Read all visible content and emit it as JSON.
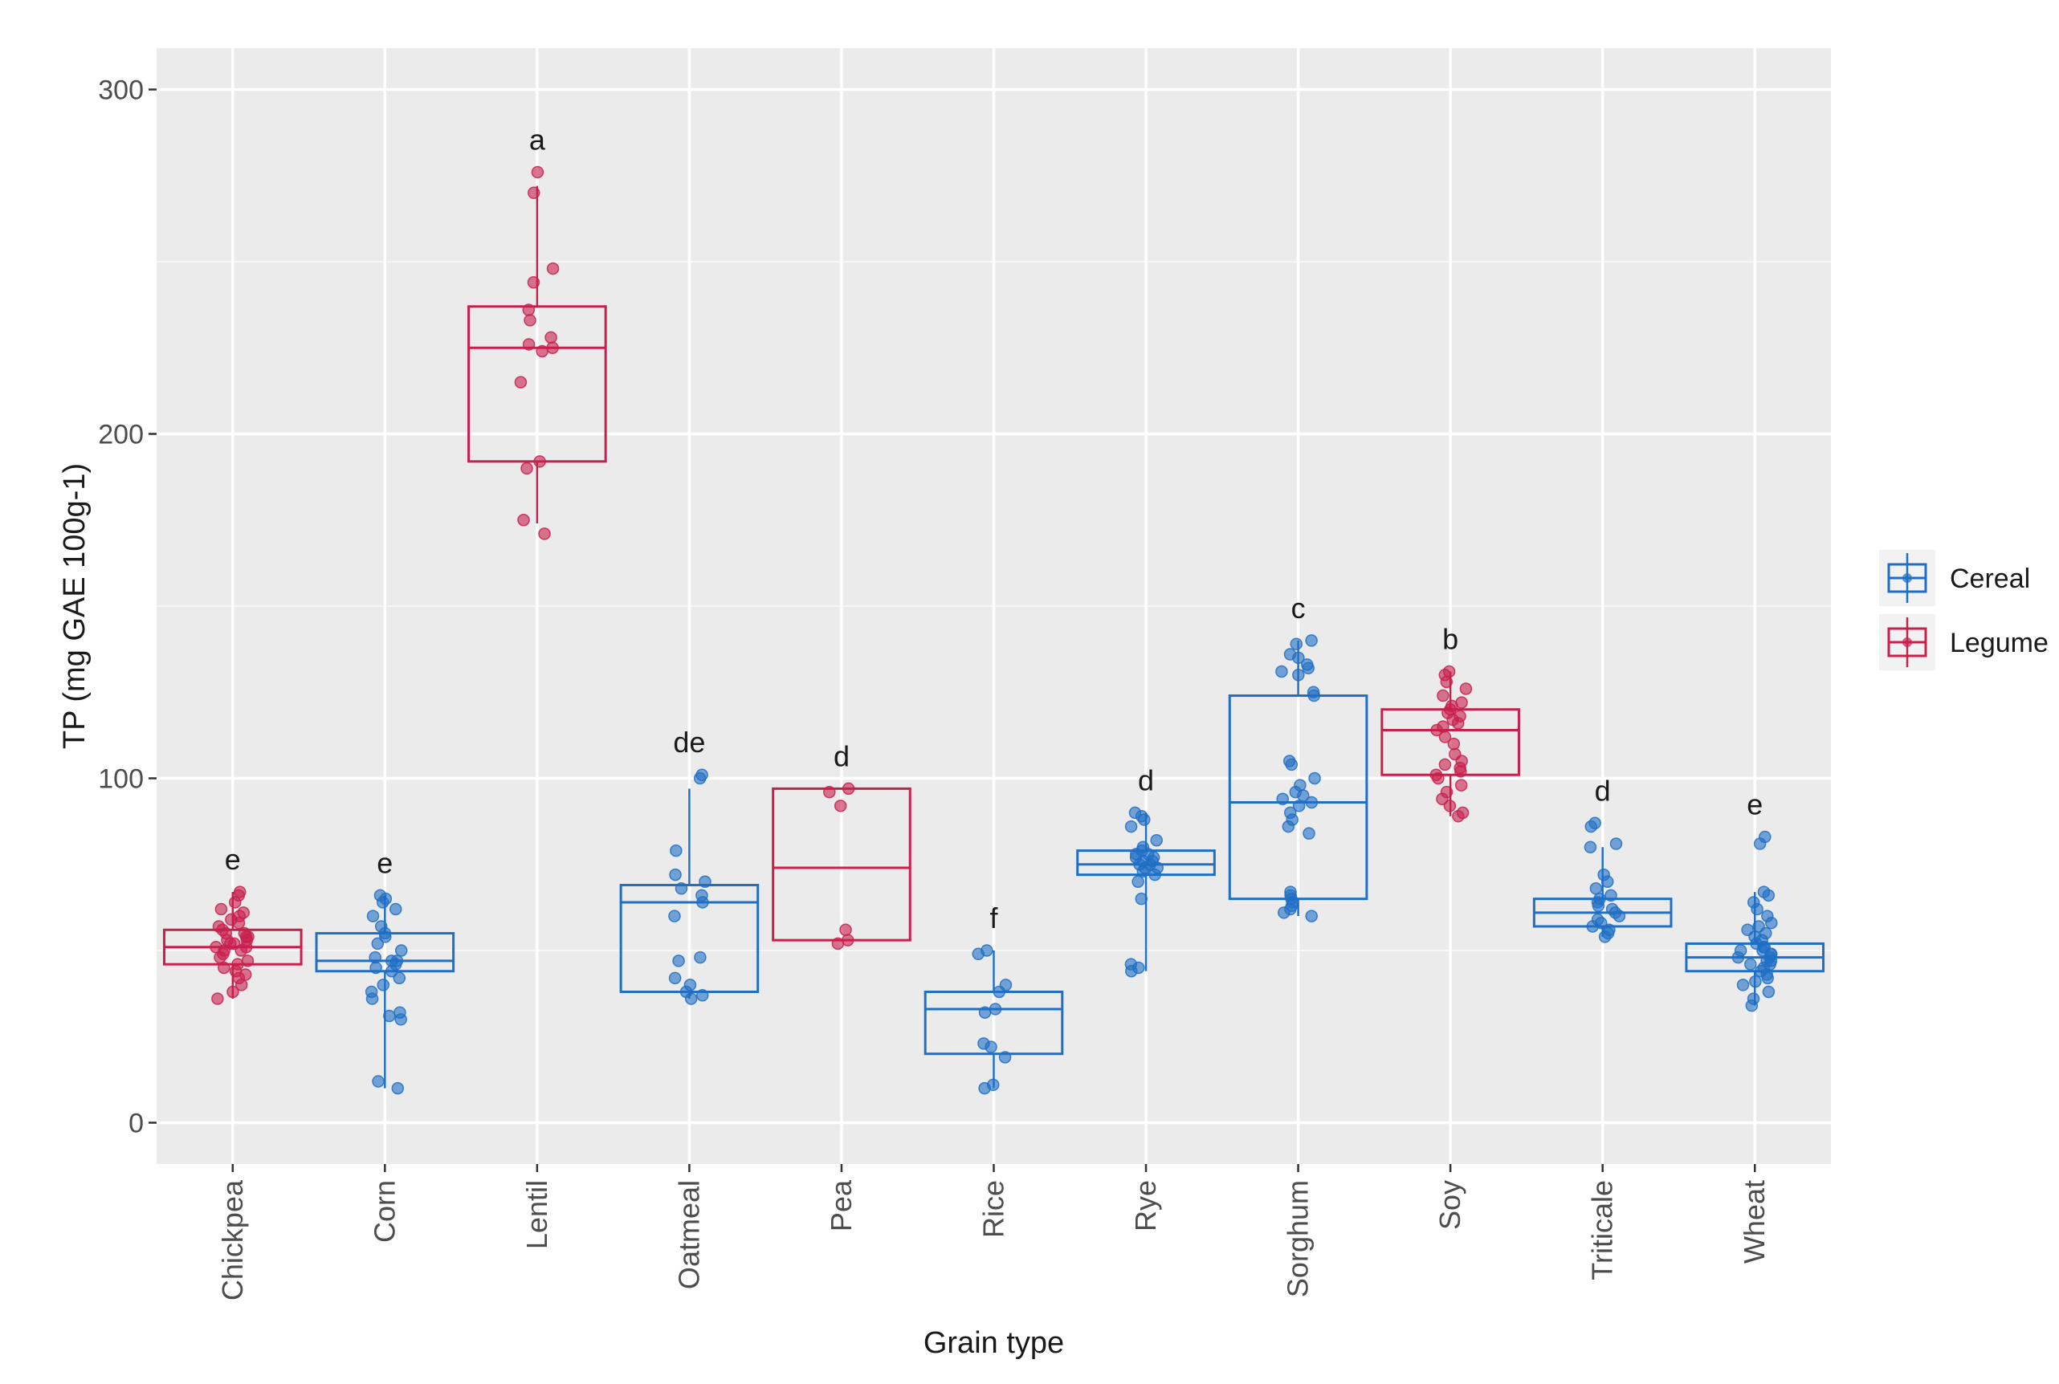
{
  "chart_data": {
    "type": "box",
    "title": "",
    "xlabel": "Grain type",
    "ylabel": "TP (mg GAE 100g-1)",
    "ylim": [
      -12,
      312
    ],
    "yticks": [
      0,
      100,
      200,
      300
    ],
    "grid": true,
    "legend": {
      "position": "right",
      "entries": [
        {
          "label": "Cereal",
          "color": "#1F6FC5"
        },
        {
          "label": "Legume",
          "color": "#C8204D"
        }
      ]
    },
    "categories": [
      "Chickpea",
      "Corn",
      "Lentil",
      "Oatmeal",
      "Pea",
      "Rice",
      "Rye",
      "Sorghum",
      "Soy",
      "Triticale",
      "Wheat"
    ],
    "groups": [
      {
        "category": "Chickpea",
        "group": "Legume",
        "letter": "e",
        "whisker_low": 36,
        "q1": 46,
        "median": 51,
        "q3": 56,
        "whisker_high": 67,
        "points": [
          36,
          38,
          40,
          42,
          43,
          44,
          45,
          46,
          47,
          48,
          49,
          50,
          50,
          51,
          51,
          52,
          52,
          53,
          53,
          54,
          54,
          55,
          55,
          56,
          57,
          58,
          59,
          60,
          61,
          62,
          64,
          66,
          67
        ]
      },
      {
        "category": "Corn",
        "group": "Cereal",
        "letter": "e",
        "whisker_low": 10,
        "q1": 44,
        "median": 47,
        "q3": 55,
        "whisker_high": 66,
        "points": [
          10,
          12,
          30,
          31,
          32,
          36,
          38,
          40,
          42,
          44,
          45,
          46,
          47,
          47,
          48,
          50,
          52,
          54,
          55,
          57,
          60,
          62,
          64,
          65,
          66
        ]
      },
      {
        "category": "Lentil",
        "group": "Legume",
        "letter": "a",
        "whisker_low": 174,
        "q1": 192,
        "median": 225,
        "q3": 237,
        "whisker_high": 272,
        "points": [
          171,
          175,
          190,
          192,
          215,
          224,
          225,
          226,
          228,
          233,
          236,
          244,
          248,
          270,
          276
        ]
      },
      {
        "category": "Oatmeal",
        "group": "Cereal",
        "letter": "de",
        "whisker_low": 36,
        "q1": 38,
        "median": 64,
        "q3": 69,
        "whisker_high": 97,
        "points": [
          36,
          37,
          38,
          40,
          42,
          47,
          48,
          60,
          64,
          66,
          68,
          70,
          72,
          79,
          100,
          101
        ]
      },
      {
        "category": "Pea",
        "group": "Legume",
        "letter": "d",
        "whisker_low": 53,
        "q1": 53,
        "median": 74,
        "q3": 97,
        "whisker_high": 97,
        "points": [
          52,
          53,
          56,
          92,
          96,
          97
        ]
      },
      {
        "category": "Rice",
        "group": "Cereal",
        "letter": "f",
        "whisker_low": 10,
        "q1": 20,
        "median": 33,
        "q3": 38,
        "whisker_high": 50,
        "points": [
          10,
          11,
          19,
          22,
          23,
          32,
          33,
          38,
          40,
          49,
          50
        ]
      },
      {
        "category": "Rye",
        "group": "Cereal",
        "letter": "d",
        "whisker_low": 44,
        "q1": 72,
        "median": 75,
        "q3": 79,
        "whisker_high": 90,
        "points": [
          44,
          45,
          46,
          65,
          70,
          72,
          73,
          74,
          74,
          75,
          75,
          76,
          76,
          77,
          77,
          78,
          78,
          79,
          80,
          82,
          86,
          88,
          89,
          90
        ]
      },
      {
        "category": "Sorghum",
        "group": "Cereal",
        "letter": "c",
        "whisker_low": 60,
        "q1": 65,
        "median": 93,
        "q3": 124,
        "whisker_high": 140,
        "points": [
          60,
          61,
          62,
          63,
          64,
          65,
          66,
          67,
          84,
          86,
          88,
          90,
          92,
          93,
          94,
          95,
          96,
          98,
          100,
          104,
          105,
          124,
          125,
          130,
          131,
          132,
          133,
          135,
          136,
          139,
          140
        ]
      },
      {
        "category": "Soy",
        "group": "Legume",
        "letter": "b",
        "whisker_low": 89,
        "q1": 101,
        "median": 114,
        "q3": 120,
        "whisker_high": 131,
        "points": [
          89,
          90,
          92,
          94,
          96,
          98,
          100,
          101,
          102,
          103,
          104,
          105,
          107,
          110,
          112,
          114,
          115,
          116,
          117,
          118,
          119,
          120,
          121,
          122,
          124,
          126,
          128,
          130,
          131
        ]
      },
      {
        "category": "Triticale",
        "group": "Cereal",
        "letter": "d",
        "whisker_low": 54,
        "q1": 57,
        "median": 61,
        "q3": 65,
        "whisker_high": 80,
        "points": [
          54,
          55,
          56,
          57,
          58,
          59,
          60,
          61,
          62,
          63,
          64,
          65,
          66,
          68,
          70,
          72,
          80,
          81,
          86,
          87
        ]
      },
      {
        "category": "Wheat",
        "group": "Cereal",
        "letter": "e",
        "whisker_low": 34,
        "q1": 44,
        "median": 48,
        "q3": 52,
        "whisker_high": 67,
        "points": [
          34,
          36,
          38,
          40,
          41,
          42,
          43,
          44,
          45,
          46,
          46,
          47,
          47,
          48,
          48,
          49,
          49,
          50,
          50,
          51,
          51,
          52,
          53,
          54,
          55,
          56,
          57,
          58,
          60,
          62,
          64,
          66,
          67,
          81,
          83
        ]
      }
    ]
  }
}
